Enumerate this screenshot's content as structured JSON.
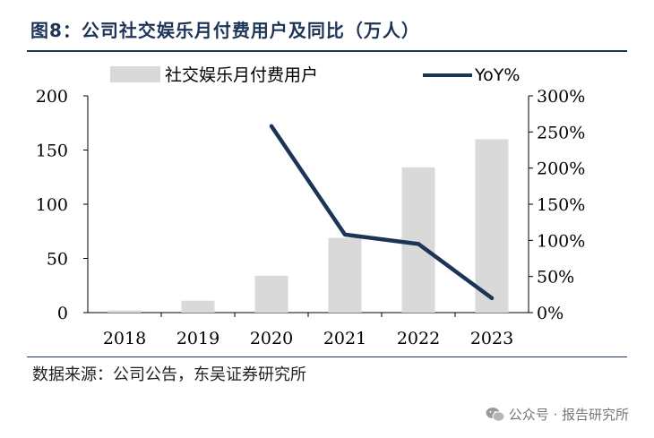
{
  "header": {
    "title": "图8：公司社交娱乐月付费用户及同比（万人）"
  },
  "footer": {
    "source": "数据来源：公司公告，东吴证券研究所"
  },
  "watermark": {
    "text": "公众号 · 报告研究所",
    "icon": "wechat-icon"
  },
  "colors": {
    "bar": "#d9d9d9",
    "line": "#1c3557",
    "axis": "#000000",
    "title": "#1c3557"
  },
  "chart_data": {
    "type": "bar",
    "title": "公司社交娱乐月付费用户及同比（万人）",
    "categories": [
      "2018",
      "2019",
      "2020",
      "2021",
      "2022",
      "2023"
    ],
    "series": [
      {
        "name": "社交娱乐月付费用户",
        "type": "bar",
        "axis": "left",
        "values": [
          2,
          11,
          34,
          69,
          134,
          160
        ]
      },
      {
        "name": "YoY%",
        "type": "line",
        "axis": "right",
        "values": [
          null,
          null,
          258,
          108,
          95,
          20
        ]
      }
    ],
    "y_left": {
      "min": 0,
      "max": 200,
      "ticks": [
        "0",
        "50",
        "100",
        "150",
        "200"
      ]
    },
    "y_right": {
      "min": 0,
      "max": 300,
      "ticks": [
        "0%",
        "50%",
        "100%",
        "150%",
        "200%",
        "250%",
        "300%"
      ]
    },
    "legend": [
      "社交娱乐月付费用户",
      "YoY%"
    ],
    "legend_position": "top",
    "grid": false
  }
}
